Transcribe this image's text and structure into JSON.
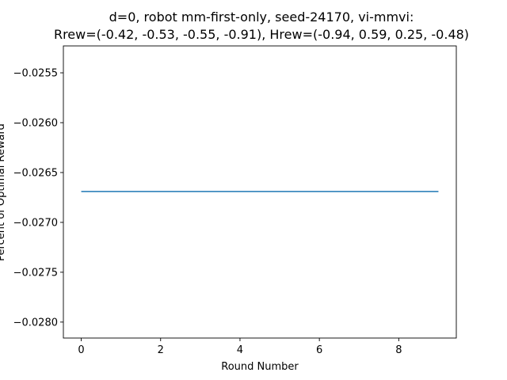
{
  "chart_data": {
    "type": "line",
    "title_lines": [
      "d=0, robot mm-first-only, seed-24170, vi-mmvi:",
      "Rrew=(-0.42, -0.53, -0.55, -0.91), Hrew=(-0.94, 0.59, 0.25, -0.48)"
    ],
    "xlabel": "Round Number",
    "ylabel": "Percent of Optimal Reward",
    "xlim": [
      -0.45,
      9.45
    ],
    "ylim": [
      -0.02816,
      -0.02523
    ],
    "x_ticks": [
      0,
      2,
      4,
      6,
      8
    ],
    "y_ticks": [
      -0.0255,
      -0.026,
      -0.0265,
      -0.027,
      -0.0275,
      -0.028
    ],
    "y_tick_labels": [
      "−0.0255",
      "−0.0260",
      "−0.0265",
      "−0.0270",
      "−0.0275",
      "−0.0280"
    ],
    "grid": false,
    "series": [
      {
        "x": [
          0,
          1,
          2,
          3,
          4,
          5,
          6,
          7,
          8,
          9
        ],
        "values": [
          -0.02669,
          -0.02669,
          -0.02669,
          -0.02669,
          -0.02669,
          -0.02669,
          -0.02669,
          -0.02669,
          -0.02669,
          -0.02669
        ],
        "color": "#1f77b4"
      }
    ]
  }
}
